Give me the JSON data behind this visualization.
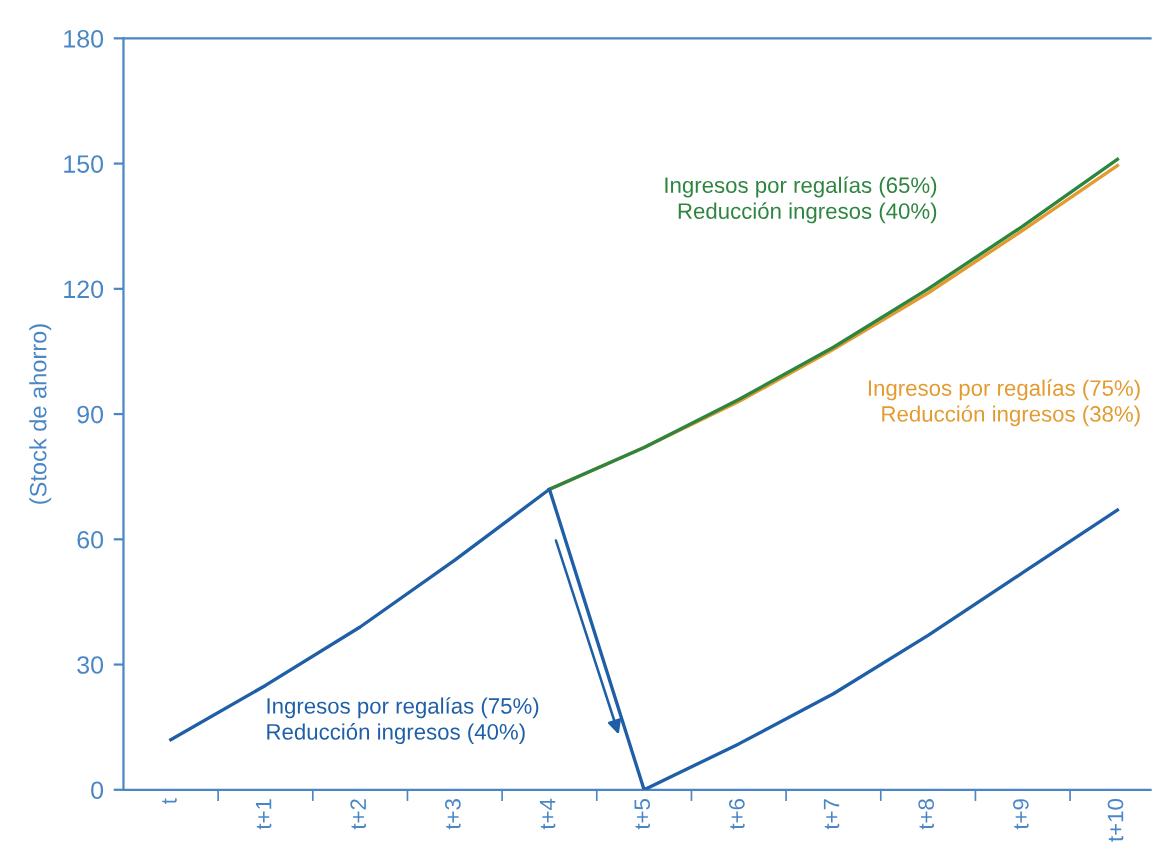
{
  "chart_data": {
    "type": "line",
    "ylabel": "(Stock de ahorro)",
    "categories": [
      "t",
      "t+1",
      "t+2",
      "t+3",
      "t+4",
      "t+5",
      "t+6",
      "t+7",
      "t+8",
      "t+9",
      "t+10"
    ],
    "ylim": [
      0,
      180
    ],
    "yticks": [
      0,
      30,
      60,
      90,
      120,
      150,
      180
    ],
    "grid": false,
    "legend": false,
    "marker": "none",
    "line_style": "solid",
    "series": [
      {
        "name": "Ingresos por regalías (75%)\nReducción ingresos (38%)",
        "color": "#e39a2f",
        "values": [
          null,
          null,
          null,
          null,
          72,
          82,
          93,
          105.5,
          119,
          134,
          149.5
        ]
      },
      {
        "name": "Ingresos por regalías (65%)\nReducción ingresos (40%)",
        "color": "#2e8540",
        "values": [
          null,
          null,
          null,
          null,
          72,
          82,
          93.5,
          106,
          120,
          135,
          151
        ]
      },
      {
        "name": "Ingresos por regalías (75%)\nReducción ingresos (40%)",
        "color": "#1f5fa8",
        "values": [
          12,
          25,
          39,
          55,
          72,
          0,
          11,
          23,
          37,
          52,
          67
        ]
      }
    ]
  }
}
